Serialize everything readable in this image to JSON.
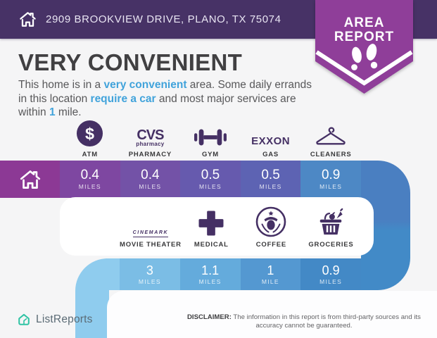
{
  "header": {
    "address": "2909 BROOKVIEW DRIVE, PLANO, TX 75074"
  },
  "badge": {
    "line1": "AREA",
    "line2": "REPORT"
  },
  "summary": {
    "title": "VERY CONVENIENT",
    "description_parts": [
      {
        "text": "This home is in a ",
        "highlight": false
      },
      {
        "text": "very convenient",
        "highlight": true
      },
      {
        "text": " area. Some daily errands in this location ",
        "highlight": false
      },
      {
        "text": "require a car",
        "highlight": true
      },
      {
        "text": " and most major services are within ",
        "highlight": false
      },
      {
        "text": "1",
        "highlight": true
      },
      {
        "text": " mile.",
        "highlight": false
      }
    ]
  },
  "row1": {
    "amenities": [
      {
        "label": "ATM",
        "icon": "atm-icon"
      },
      {
        "label": "PHARMACY",
        "icon": "cvs-pharmacy-logo"
      },
      {
        "label": "GYM",
        "icon": "dumbbell-icon"
      },
      {
        "label": "GAS",
        "icon": "exxon-logo"
      },
      {
        "label": "CLEANERS",
        "icon": "hanger-icon"
      }
    ],
    "distances": [
      {
        "value": "0.4",
        "unit": "MILES"
      },
      {
        "value": "0.4",
        "unit": "MILES"
      },
      {
        "value": "0.5",
        "unit": "MILES"
      },
      {
        "value": "0.5",
        "unit": "MILES"
      },
      {
        "value": "0.9",
        "unit": "MILES"
      }
    ]
  },
  "row2": {
    "amenities": [
      {
        "label": "MOVIE THEATER",
        "icon": "cinemark-logo"
      },
      {
        "label": "MEDICAL",
        "icon": "medical-cross-icon"
      },
      {
        "label": "COFFEE",
        "icon": "starbucks-logo"
      },
      {
        "label": "GROCERIES",
        "icon": "grocery-basket-icon"
      }
    ],
    "distances": [
      {
        "value": "3",
        "unit": "MILES"
      },
      {
        "value": "1.1",
        "unit": "MILES"
      },
      {
        "value": "1",
        "unit": "MILE"
      },
      {
        "value": "0.9",
        "unit": "MILES"
      }
    ]
  },
  "logos": {
    "atm_symbol": "$",
    "cvs_line1": "CVS",
    "cvs_line2": "pharmacy",
    "exxon": "EXXON",
    "cinemark": "CINEMARK"
  },
  "footer": {
    "brand": "ListReports",
    "disclaimer_label": "DISCLAIMER:",
    "disclaimer_text": " The information in this report is from third-party sources and its accuracy cannot be guaranteed."
  },
  "colors": {
    "header_bg": "#473266",
    "badge_purple": "#8f3e99",
    "accent_blue": "#41a3db",
    "icon_purple": "#453064",
    "brand_teal": "#2fc3a4",
    "band1_home": "#8c3995",
    "band1_segments": [
      "#7e47a1",
      "#7352a7",
      "#665aae",
      "#5d63b3",
      "#4d88c5"
    ],
    "uturn_top": "#4a7fc1",
    "uturn_bottom": "#428ac7",
    "band2_segments": [
      "#7bbde5",
      "#64abdc",
      "#5498d1",
      "#4389c6"
    ],
    "band2_tail": "#8fccee"
  }
}
